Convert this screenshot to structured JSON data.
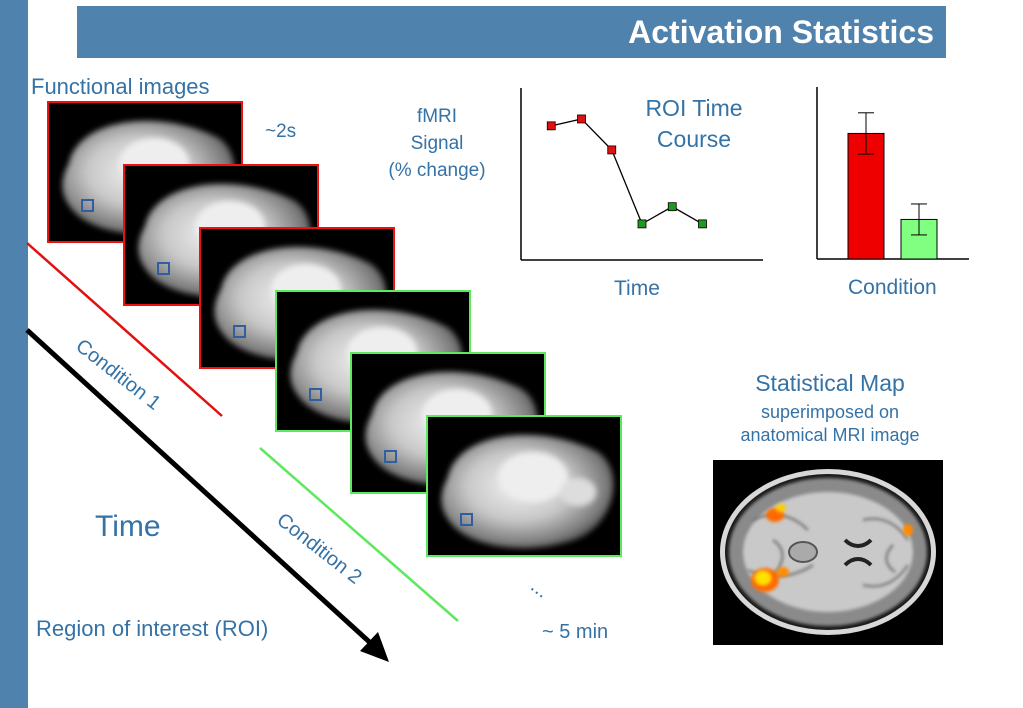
{
  "title": "Activation Statistics",
  "labels": {
    "functional_images": "Functional images",
    "interval": "~2s",
    "fmri_signal": [
      "fMRI",
      "Signal",
      "(% change)"
    ],
    "roi_time_course": [
      "ROI Time",
      "Course"
    ],
    "time_axis": "Time",
    "condition_axis": "Condition",
    "stat_map_title": "Statistical Map",
    "stat_map_sub": [
      "superimposed on",
      "anatomical MRI image"
    ],
    "condition1": "Condition 1",
    "condition2": "Condition 2",
    "time_arrow": "Time",
    "roi": "Region of interest (ROI)",
    "ellipsis": "...",
    "duration": "~ 5 min"
  },
  "colors": {
    "brand_blue": "#4f82ad",
    "text_blue": "#3572a6",
    "condition1": "#e11111",
    "condition2": "#5ee85e"
  },
  "chart_data": [
    {
      "type": "line",
      "title": "ROI Time Course",
      "xlabel": "Time",
      "ylabel": "fMRI Signal (% change)",
      "x": [
        1,
        2,
        3,
        4,
        5,
        6
      ],
      "series": [
        {
          "name": "Condition 1",
          "color": "#e11111",
          "x": [
            1,
            2,
            3
          ],
          "values": [
            0.78,
            0.82,
            0.64
          ]
        },
        {
          "name": "Condition 2",
          "color": "#1f9a1f",
          "x": [
            4,
            5,
            6
          ],
          "values": [
            0.21,
            0.31,
            0.21
          ]
        }
      ],
      "xlim": [
        0,
        8
      ],
      "ylim": [
        0,
        1
      ]
    },
    {
      "type": "bar",
      "xlabel": "Condition",
      "categories": [
        "Condition 1",
        "Condition 2"
      ],
      "values": [
        0.73,
        0.23
      ],
      "errors": [
        0.12,
        0.09
      ],
      "colors": [
        "#ee0000",
        "#80ff80"
      ],
      "ylim": [
        0,
        1
      ]
    }
  ]
}
